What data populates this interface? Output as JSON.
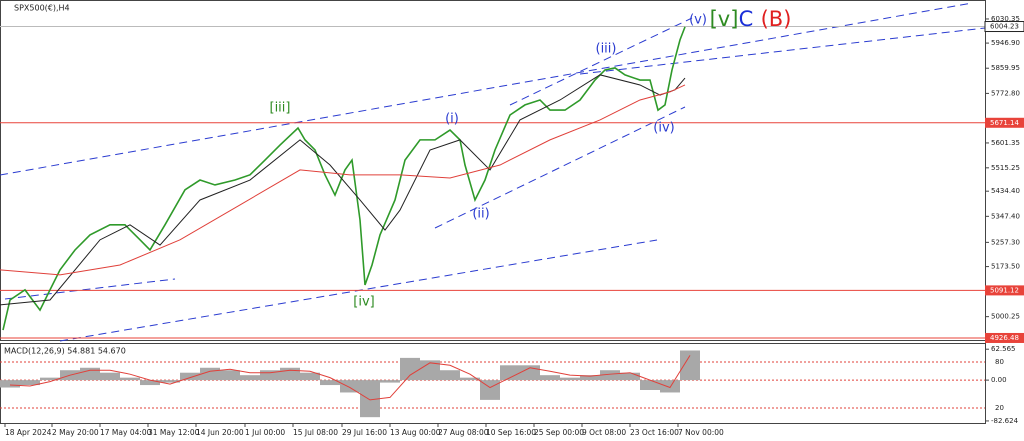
{
  "chart_data": [
    {
      "type": "line",
      "title": "SPX500(€),H4",
      "xlim": [
        0,
        985
      ],
      "ylim": [
        4916,
        6096
      ],
      "xticks": [
        {
          "value": 5,
          "label": "18 Apr 2024"
        },
        {
          "value": 52,
          "label": "2 May 20:00"
        },
        {
          "value": 100,
          "label": "17 May 04:00"
        },
        {
          "value": 148,
          "label": "31 May 12:00"
        },
        {
          "value": 196,
          "label": "14 Jun 20:00"
        },
        {
          "value": 245,
          "label": "1 Jul 00:00"
        },
        {
          "value": 293,
          "label": "15 Jul 08:00"
        },
        {
          "value": 342,
          "label": "29 Jul 16:00"
        },
        {
          "value": 390,
          "label": "13 Aug 00:00"
        },
        {
          "value": 438,
          "label": "27 Aug 08:00"
        },
        {
          "value": 486,
          "label": "10 Sep 16:00"
        },
        {
          "value": 534,
          "label": "25 Sep 00:00"
        },
        {
          "value": 582,
          "label": "9 Oct 08:00"
        },
        {
          "value": 630,
          "label": "23 Oct 16:00"
        },
        {
          "value": 678,
          "label": "7 Nov 00:00"
        }
      ],
      "yticks": [
        6030.35,
        {
          "value": 5946.9,
          "label": "5946.90"
        },
        5859.95,
        {
          "value": 5772.8,
          "label": "5772.80"
        },
        5601.35,
        5515.25,
        {
          "value": 5434.4,
          "label": "5434.40"
        },
        {
          "value": 5347.4,
          "label": "5347.40"
        },
        {
          "value": 5257.3,
          "label": "5257.30"
        },
        {
          "value": 5173.5,
          "label": "5173.50"
        },
        5000.25
      ],
      "levels": [
        5671.14,
        5091.12,
        4926.48
      ],
      "level_color": "#e8433a",
      "current_price": 6004.23,
      "series": [
        {
          "color": "#2f9a2a",
          "x": [
            3,
            10,
            25,
            40,
            50,
            60,
            75,
            90,
            110,
            125,
            140,
            150,
            165,
            185,
            200,
            215,
            235,
            250,
            265,
            280,
            298,
            305,
            315,
            325,
            335,
            345,
            352,
            360,
            365,
            372,
            380,
            395,
            405,
            420,
            435,
            450,
            460,
            465,
            475,
            485,
            495,
            510,
            525,
            540,
            550,
            565,
            580,
            595,
            605,
            615,
            625,
            640,
            650,
            658,
            665,
            672,
            680,
            685
          ],
          "values": [
            4954,
            5058,
            5093,
            5023,
            5093,
            5162,
            5231,
            5283,
            5318,
            5318,
            5266,
            5231,
            5318,
            5439,
            5473,
            5456,
            5473,
            5491,
            5542,
            5594,
            5653,
            5612,
            5577,
            5491,
            5421,
            5508,
            5542,
            5335,
            5110,
            5179,
            5283,
            5404,
            5542,
            5612,
            5612,
            5646,
            5612,
            5525,
            5404,
            5473,
            5577,
            5698,
            5733,
            5750,
            5715,
            5715,
            5750,
            5819,
            5854,
            5861,
            5837,
            5819,
            5819,
            5715,
            5733,
            5854,
            5958,
            6003
          ]
        },
        {
          "color": "#222222",
          "x": [
            0,
            50,
            100,
            130,
            160,
            200,
            250,
            300,
            330,
            360,
            385,
            400,
            430,
            460,
            490,
            520,
            560,
            600,
            640,
            660,
            675,
            685
          ],
          "values": [
            5041,
            5058,
            5266,
            5318,
            5248,
            5404,
            5473,
            5612,
            5525,
            5404,
            5300,
            5369,
            5577,
            5612,
            5508,
            5681,
            5750,
            5837,
            5802,
            5767,
            5785,
            5826
          ]
        },
        {
          "color": "#e0403a",
          "x": [
            0,
            60,
            120,
            180,
            240,
            300,
            350,
            400,
            450,
            500,
            550,
            600,
            640,
            670,
            685
          ],
          "values": [
            5162,
            5145,
            5179,
            5266,
            5387,
            5508,
            5491,
            5491,
            5480,
            5525,
            5612,
            5681,
            5750,
            5778,
            5802
          ]
        }
      ],
      "annotations": [
        {
          "text": "[iii]",
          "color": "#2e8b22"
        },
        {
          "text": "[iv]",
          "color": "#2e8b22"
        },
        {
          "text": "(i)",
          "color": "#2a3bd0"
        },
        {
          "text": "(ii)",
          "color": "#2a3bd0"
        },
        {
          "text": "(iii)",
          "color": "#2a3bd0"
        },
        {
          "text": "(iv)",
          "color": "#2a3bd0"
        },
        {
          "text": "(v)",
          "color": "#2a3bd0"
        },
        {
          "text": "[v]",
          "color": "#2e8b22"
        },
        {
          "text": "C",
          "color": "#1a2fd8"
        },
        {
          "text": "(B)",
          "color": "#e02020"
        }
      ]
    },
    {
      "type": "bar",
      "title": "MACD(12,26,9) 54.881 54.670",
      "xlim": [
        0,
        985
      ],
      "ylim": [
        -86.8,
        73.1
      ],
      "yticks": [
        62.565,
        {
          "value": 0,
          "label": "0.00"
        },
        -82.624
      ],
      "level_labels": [
        "80",
        "20"
      ],
      "x": [
        0,
        20,
        40,
        60,
        80,
        100,
        120,
        140,
        160,
        180,
        200,
        220,
        240,
        260,
        280,
        300,
        320,
        340,
        360,
        380,
        400,
        420,
        440,
        460,
        480,
        500,
        520,
        540,
        560,
        580,
        600,
        620,
        640,
        660,
        680
      ],
      "series": [
        {
          "color": "#a8a8a8",
          "values": [
            -15,
            -10,
            5,
            20,
            25,
            15,
            5,
            -10,
            -5,
            15,
            25,
            20,
            10,
            20,
            25,
            15,
            -10,
            -25,
            -75,
            -5,
            45,
            40,
            20,
            5,
            -40,
            30,
            30,
            10,
            5,
            10,
            20,
            15,
            -20,
            -25,
            60
          ]
        },
        {
          "color": "#e0403a",
          "values": [
            -10,
            -12,
            -3,
            10,
            20,
            20,
            12,
            0,
            -8,
            5,
            18,
            22,
            15,
            15,
            20,
            18,
            5,
            -15,
            -40,
            -35,
            10,
            35,
            30,
            12,
            -15,
            5,
            25,
            18,
            10,
            8,
            12,
            15,
            0,
            -15,
            50
          ]
        }
      ]
    }
  ]
}
